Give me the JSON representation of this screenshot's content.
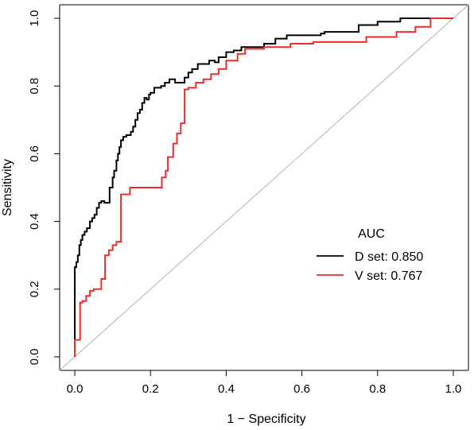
{
  "chart_data": {
    "type": "line",
    "title": "",
    "xlabel": "1 − Specificity",
    "ylabel": "Sensitivity",
    "xlim": [
      -0.04,
      1.04
    ],
    "ylim": [
      -0.04,
      1.04
    ],
    "xticks": [
      "0.0",
      "0.2",
      "0.4",
      "0.6",
      "0.8",
      "1.0"
    ],
    "yticks": [
      "0.0",
      "0.2",
      "0.4",
      "0.6",
      "0.8",
      "1.0"
    ],
    "grid": false,
    "reference_line": {
      "from": [
        0,
        0
      ],
      "to": [
        1,
        1
      ],
      "color": "#bebebe"
    },
    "legend": {
      "title": "AUC",
      "placement": "lower-right",
      "entries": [
        "D set: 0.850",
        "V set: 0.767"
      ]
    },
    "series": [
      {
        "name": "D set: 0.850",
        "color": "#000000",
        "x": [
          0,
          0,
          0.004,
          0.004,
          0.008,
          0.008,
          0.012,
          0.012,
          0.016,
          0.016,
          0.02,
          0.02,
          0.026,
          0.026,
          0.032,
          0.032,
          0.04,
          0.04,
          0.046,
          0.046,
          0.052,
          0.052,
          0.058,
          0.058,
          0.064,
          0.064,
          0.07,
          0.07,
          0.078,
          0.078,
          0.092,
          0.092,
          0.1,
          0.1,
          0.104,
          0.104,
          0.11,
          0.11,
          0.114,
          0.114,
          0.118,
          0.118,
          0.122,
          0.122,
          0.128,
          0.128,
          0.136,
          0.136,
          0.148,
          0.148,
          0.154,
          0.154,
          0.16,
          0.16,
          0.166,
          0.166,
          0.172,
          0.172,
          0.178,
          0.178,
          0.184,
          0.184,
          0.19,
          0.19,
          0.196,
          0.196,
          0.2,
          0.2,
          0.21,
          0.21,
          0.228,
          0.228,
          0.238,
          0.238,
          0.25,
          0.25,
          0.265,
          0.265,
          0.29,
          0.29,
          0.3,
          0.3,
          0.31,
          0.31,
          0.325,
          0.325,
          0.355,
          0.355,
          0.37,
          0.37,
          0.38,
          0.38,
          0.4,
          0.4,
          0.42,
          0.42,
          0.44,
          0.44,
          0.5,
          0.5,
          0.53,
          0.53,
          0.56,
          0.56,
          0.65,
          0.65,
          0.66,
          0.66,
          0.75,
          0.75,
          0.8,
          0.8,
          0.86,
          0.86,
          1.0
        ],
        "y": [
          0,
          0.265,
          0.265,
          0.28,
          0.28,
          0.3,
          0.3,
          0.33,
          0.33,
          0.345,
          0.345,
          0.36,
          0.36,
          0.37,
          0.37,
          0.38,
          0.38,
          0.4,
          0.4,
          0.41,
          0.41,
          0.42,
          0.42,
          0.44,
          0.44,
          0.455,
          0.455,
          0.46,
          0.46,
          0.455,
          0.455,
          0.5,
          0.5,
          0.53,
          0.53,
          0.55,
          0.55,
          0.58,
          0.58,
          0.6,
          0.6,
          0.62,
          0.62,
          0.64,
          0.64,
          0.65,
          0.65,
          0.655,
          0.655,
          0.665,
          0.665,
          0.68,
          0.68,
          0.7,
          0.7,
          0.72,
          0.72,
          0.73,
          0.73,
          0.75,
          0.75,
          0.765,
          0.765,
          0.76,
          0.76,
          0.775,
          0.775,
          0.78,
          0.78,
          0.795,
          0.795,
          0.8,
          0.8,
          0.81,
          0.81,
          0.82,
          0.82,
          0.81,
          0.81,
          0.825,
          0.825,
          0.84,
          0.84,
          0.85,
          0.85,
          0.865,
          0.865,
          0.875,
          0.875,
          0.87,
          0.87,
          0.885,
          0.885,
          0.9,
          0.9,
          0.905,
          0.905,
          0.915,
          0.915,
          0.925,
          0.925,
          0.94,
          0.94,
          0.95,
          0.95,
          0.955,
          0.955,
          0.96,
          0.96,
          0.98,
          0.98,
          0.99,
          0.99,
          1.0,
          1.0
        ]
      },
      {
        "name": "V set: 0.767",
        "color": "#ee2c2c",
        "x": [
          0,
          0,
          0.014,
          0.014,
          0.02,
          0.02,
          0.03,
          0.03,
          0.04,
          0.04,
          0.05,
          0.05,
          0.07,
          0.07,
          0.08,
          0.08,
          0.09,
          0.09,
          0.1,
          0.1,
          0.11,
          0.11,
          0.122,
          0.122,
          0.146,
          0.146,
          0.23,
          0.23,
          0.24,
          0.24,
          0.246,
          0.246,
          0.26,
          0.26,
          0.27,
          0.27,
          0.28,
          0.28,
          0.29,
          0.29,
          0.3,
          0.3,
          0.32,
          0.32,
          0.34,
          0.34,
          0.36,
          0.36,
          0.38,
          0.38,
          0.4,
          0.4,
          0.43,
          0.43,
          0.45,
          0.45,
          0.5,
          0.5,
          0.57,
          0.57,
          0.63,
          0.63,
          0.77,
          0.77,
          0.85,
          0.85,
          0.9,
          0.9,
          0.94,
          0.94,
          1.0
        ],
        "y": [
          0,
          0.05,
          0.05,
          0.16,
          0.16,
          0.165,
          0.165,
          0.18,
          0.18,
          0.195,
          0.195,
          0.2,
          0.2,
          0.23,
          0.23,
          0.3,
          0.3,
          0.315,
          0.315,
          0.33,
          0.33,
          0.34,
          0.34,
          0.48,
          0.48,
          0.5,
          0.5,
          0.53,
          0.53,
          0.55,
          0.55,
          0.59,
          0.59,
          0.63,
          0.63,
          0.66,
          0.66,
          0.69,
          0.69,
          0.79,
          0.79,
          0.795,
          0.795,
          0.81,
          0.81,
          0.82,
          0.82,
          0.835,
          0.835,
          0.85,
          0.85,
          0.875,
          0.875,
          0.895,
          0.895,
          0.91,
          0.91,
          0.915,
          0.915,
          0.925,
          0.925,
          0.93,
          0.93,
          0.945,
          0.945,
          0.96,
          0.96,
          0.975,
          0.975,
          1.0,
          1.0
        ]
      }
    ]
  }
}
